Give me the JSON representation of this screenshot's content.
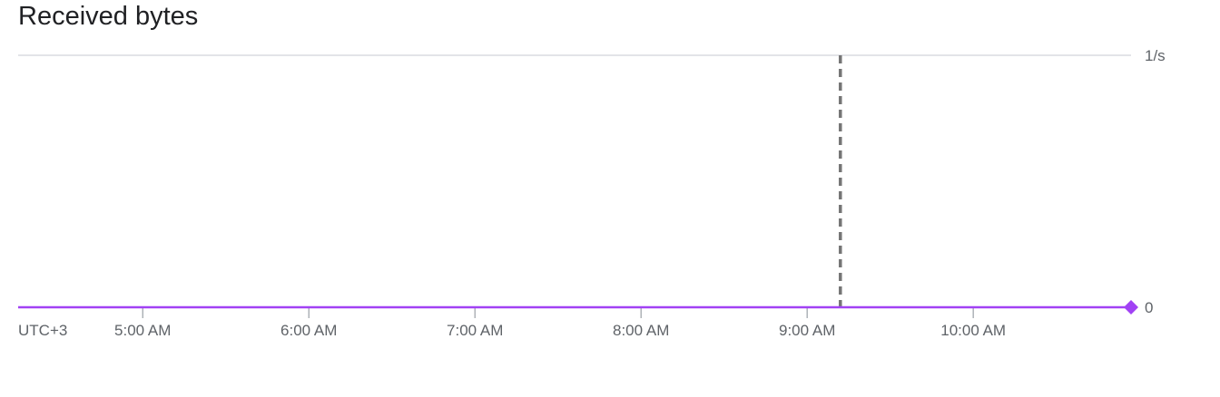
{
  "chart_data": {
    "type": "line",
    "title": "Received bytes",
    "timezone_label": "UTC+3",
    "x_tick_labels": [
      "5:00 AM",
      "6:00 AM",
      "7:00 AM",
      "8:00 AM",
      "9:00 AM",
      "10:00 AM"
    ],
    "x_tick_hours": [
      5,
      6,
      7,
      8,
      9,
      10
    ],
    "x_range_hours": [
      4.25,
      10.95
    ],
    "y_tick_labels": [
      "1/s",
      "0"
    ],
    "y_tick_values": [
      1,
      0
    ],
    "ylim": [
      0,
      1
    ],
    "series": [
      {
        "color": "#a142f4",
        "x_hours": [
          4.25,
          10.95
        ],
        "y": [
          0,
          0
        ]
      }
    ],
    "marker_line_hour": 9.2,
    "colors": {
      "series": "#a142f4",
      "grid": "#dadce0",
      "axis": "#9aa0a6",
      "marker": "#757575",
      "text": "#5f6368"
    }
  }
}
